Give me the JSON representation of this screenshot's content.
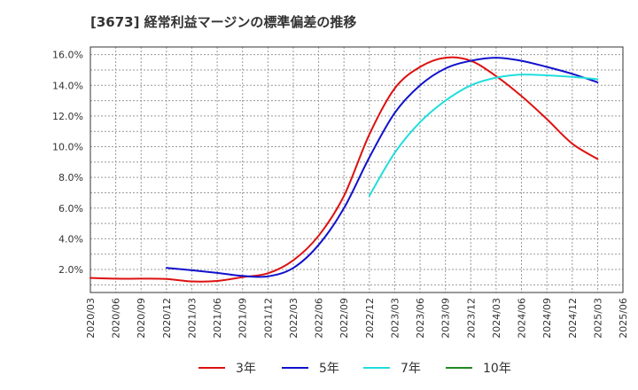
{
  "chart_data": {
    "type": "line",
    "title": "[3673]  経常利益マージンの標準偏差の推移",
    "xlabel": "",
    "ylabel": "",
    "ylim": [
      0.5,
      16.5
    ],
    "y_ticks": [
      "2.0%",
      "4.0%",
      "6.0%",
      "8.0%",
      "10.0%",
      "12.0%",
      "14.0%",
      "16.0%"
    ],
    "y_tick_values": [
      2,
      4,
      6,
      8,
      10,
      12,
      14,
      16
    ],
    "x_ticks": [
      "2020/03",
      "2020/06",
      "2020/09",
      "2020/12",
      "2021/03",
      "2021/06",
      "2021/09",
      "2021/12",
      "2022/03",
      "2022/06",
      "2022/09",
      "2022/12",
      "2023/03",
      "2023/06",
      "2023/09",
      "2023/12",
      "2024/03",
      "2024/06",
      "2024/09",
      "2024/12",
      "2025/03",
      "2025/06"
    ],
    "grid": true,
    "legend_position": "bottom",
    "series": [
      {
        "name": "3年",
        "color": "#dd1111",
        "points": [
          [
            "2020/03",
            1.45
          ],
          [
            "2020/06",
            1.4
          ],
          [
            "2020/09",
            1.4
          ],
          [
            "2020/12",
            1.38
          ],
          [
            "2021/03",
            1.22
          ],
          [
            "2021/06",
            1.25
          ],
          [
            "2021/09",
            1.5
          ],
          [
            "2021/12",
            1.75
          ],
          [
            "2022/03",
            2.6
          ],
          [
            "2022/06",
            4.2
          ],
          [
            "2022/09",
            6.8
          ],
          [
            "2022/12",
            10.8
          ],
          [
            "2023/03",
            13.8
          ],
          [
            "2023/06",
            15.2
          ],
          [
            "2023/09",
            15.8
          ],
          [
            "2023/12",
            15.6
          ],
          [
            "2024/03",
            14.6
          ],
          [
            "2024/06",
            13.3
          ],
          [
            "2024/09",
            11.8
          ],
          [
            "2024/12",
            10.2
          ],
          [
            "2025/03",
            9.2
          ]
        ]
      },
      {
        "name": "5年",
        "color": "#1111cc",
        "points": [
          [
            "2020/12",
            2.1
          ],
          [
            "2021/03",
            1.95
          ],
          [
            "2021/06",
            1.78
          ],
          [
            "2021/09",
            1.58
          ],
          [
            "2021/12",
            1.55
          ],
          [
            "2022/03",
            2.1
          ],
          [
            "2022/06",
            3.6
          ],
          [
            "2022/09",
            6.0
          ],
          [
            "2022/12",
            9.3
          ],
          [
            "2023/03",
            12.2
          ],
          [
            "2023/06",
            14.0
          ],
          [
            "2023/09",
            15.1
          ],
          [
            "2023/12",
            15.6
          ],
          [
            "2024/03",
            15.8
          ],
          [
            "2024/06",
            15.6
          ],
          [
            "2024/09",
            15.2
          ],
          [
            "2024/12",
            14.75
          ],
          [
            "2025/03",
            14.2
          ]
        ]
      },
      {
        "name": "7年",
        "color": "#22dddd",
        "points": [
          [
            "2022/12",
            6.8
          ],
          [
            "2023/03",
            9.6
          ],
          [
            "2023/06",
            11.6
          ],
          [
            "2023/09",
            13.0
          ],
          [
            "2023/12",
            14.0
          ],
          [
            "2024/03",
            14.5
          ],
          [
            "2024/06",
            14.7
          ],
          [
            "2024/09",
            14.65
          ],
          [
            "2024/12",
            14.55
          ],
          [
            "2025/03",
            14.4
          ]
        ]
      },
      {
        "name": "10年",
        "color": "#228822",
        "points": []
      }
    ]
  }
}
